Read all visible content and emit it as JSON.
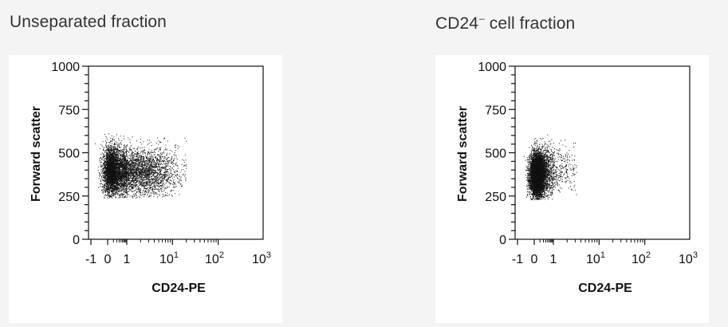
{
  "panels": [
    {
      "title": "Unseparated fraction",
      "title_sup": ""
    },
    {
      "title": "CD24",
      "title_sup": "–",
      "title_after": " cell fraction"
    }
  ],
  "chart_data": [
    {
      "type": "scatter",
      "title": "Unseparated fraction",
      "xlabel": "CD24-PE",
      "ylabel": "Forward scatter",
      "x_scale": "biexponential (log with linear region near 0)",
      "x_ticks": [
        "-1",
        "0",
        "1",
        "10¹",
        "10²",
        "10³"
      ],
      "y_ticks": [
        "0",
        "250",
        "500",
        "750",
        "1000"
      ],
      "ylim": [
        0,
        1000
      ],
      "point_color": "#111111",
      "clusters": [
        {
          "x_center": 0.2,
          "x_spread": 0.25,
          "y_center": 400,
          "y_spread": 70,
          "weight": 0.45
        },
        {
          "x_center": 1.2,
          "x_spread": 0.45,
          "y_center": 390,
          "y_spread": 70,
          "weight": 0.55
        }
      ],
      "y_range": [
        240,
        620
      ],
      "x_range": [
        -0.8,
        2.3
      ]
    },
    {
      "type": "scatter",
      "title": "CD24– cell fraction",
      "xlabel": "CD24-PE",
      "ylabel": "Forward scatter",
      "x_scale": "biexponential (log with linear region near 0)",
      "x_ticks": [
        "-1",
        "0",
        "1",
        "10¹",
        "10²",
        "10³"
      ],
      "y_ticks": [
        "0",
        "250",
        "500",
        "750",
        "1000"
      ],
      "ylim": [
        0,
        1000
      ],
      "point_color": "#111111",
      "clusters": [
        {
          "x_center": 0.15,
          "x_spread": 0.22,
          "y_center": 370,
          "y_spread": 65,
          "weight": 0.85
        },
        {
          "x_center": 0.8,
          "x_spread": 0.45,
          "y_center": 400,
          "y_spread": 70,
          "weight": 0.15
        }
      ],
      "y_range": [
        230,
        620
      ],
      "x_range": [
        -0.8,
        1.5
      ]
    }
  ]
}
